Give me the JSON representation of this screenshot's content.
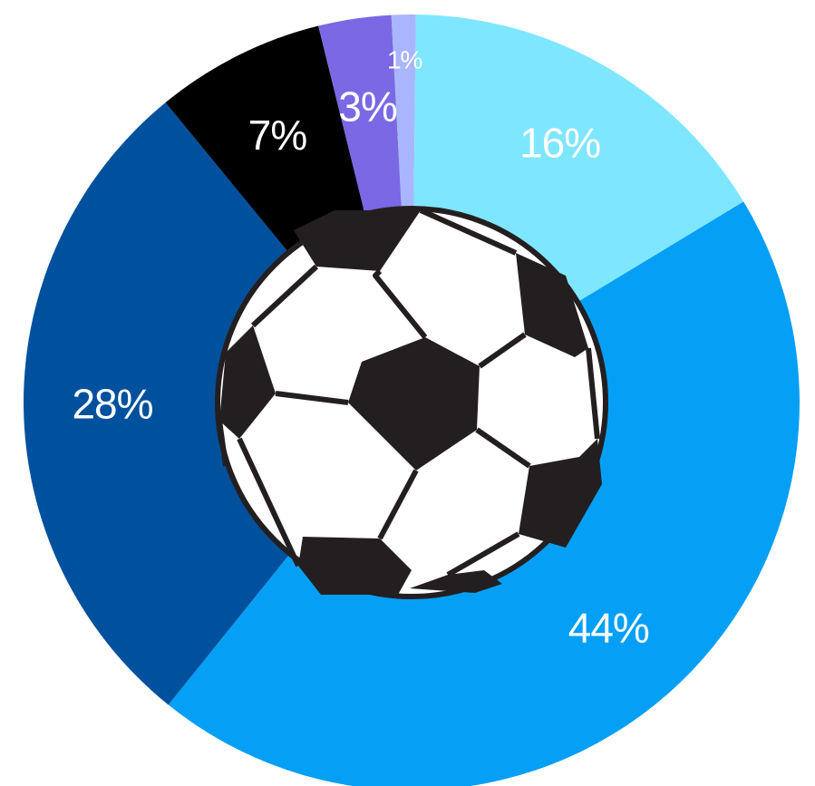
{
  "chart_data": {
    "type": "pie",
    "variant": "donut",
    "categories": [
      "",
      "",
      "",
      "",
      "",
      ""
    ],
    "values": [
      1,
      16,
      44,
      28,
      7,
      3
    ],
    "labels": [
      "1%",
      "16%",
      "44%",
      "28%",
      "7%",
      "3%"
    ],
    "colors": [
      "#a9b6ff",
      "#7fe6ff",
      "#059ff6",
      "#00519d",
      "#000000",
      "#7a68e4"
    ],
    "title": "",
    "legend": "none",
    "center_icon": "soccer-ball-icon"
  }
}
